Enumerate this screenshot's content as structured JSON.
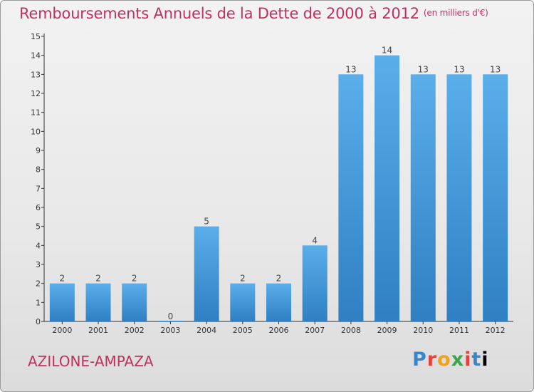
{
  "chart_data": {
    "type": "bar",
    "title": "Remboursements Annuels de la Dette de 2000 à 2012",
    "unit": "(en milliers d'€)",
    "categories": [
      "2000",
      "2001",
      "2002",
      "2003",
      "2004",
      "2005",
      "2006",
      "2007",
      "2008",
      "2009",
      "2010",
      "2011",
      "2012"
    ],
    "values": [
      2,
      2,
      2,
      0,
      5,
      2,
      2,
      4,
      13,
      14,
      13,
      13,
      13
    ],
    "ylim": [
      0,
      15
    ],
    "yticks": [
      0,
      1,
      2,
      3,
      4,
      5,
      6,
      7,
      8,
      9,
      10,
      11,
      12,
      13,
      14,
      15
    ],
    "grid": false,
    "bar_color": "#4a9fe0"
  },
  "commune": "AZILONE-AMPAZA",
  "logo": [
    "P",
    "r",
    "o",
    "x",
    "i",
    "t",
    "i"
  ]
}
